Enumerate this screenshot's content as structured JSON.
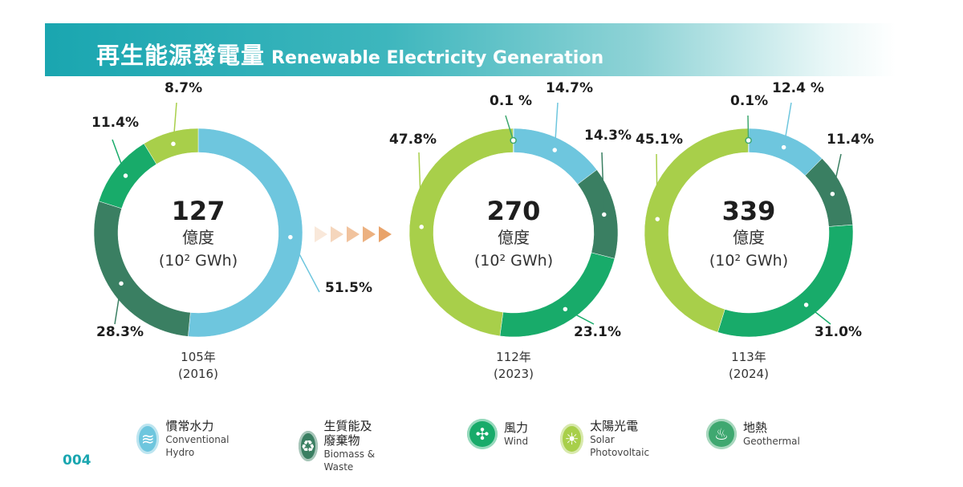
{
  "header": {
    "title_zh": "再生能源發電量",
    "title_en": "Renewable Electricity Generation"
  },
  "page_number": "004",
  "legend": [
    {
      "zh": "慣常水力",
      "en": "Conventional Hydro",
      "color": "#6ec6de",
      "icon": "hydro-icon"
    },
    {
      "zh": "生質能及廢棄物",
      "en": "Biomass & Waste",
      "color": "#3a7f62",
      "icon": "biomass-icon"
    },
    {
      "zh": "風力",
      "en": "Wind",
      "color": "#18ab6a",
      "icon": "wind-turbine-icon"
    },
    {
      "zh": "太陽光電",
      "en": "Solar Photovoltaic",
      "color": "#a8cf4a",
      "icon": "sun-icon"
    },
    {
      "zh": "地熱",
      "en": "Geothermal",
      "color": "#3fa870",
      "icon": "geothermal-icon"
    }
  ],
  "chart_data": [
    {
      "type": "pie",
      "year_label": "105年",
      "year_sub": "(2016)",
      "total": "127",
      "unit_zh": "億度",
      "unit_en": "(10² GWh)",
      "slices": [
        {
          "name": "慣常水力",
          "value": 51.5,
          "label": "51.5%",
          "color": "#6ec6de"
        },
        {
          "name": "生質能及廢棄物",
          "value": 28.3,
          "label": "28.3%",
          "color": "#3a7f62"
        },
        {
          "name": "風力",
          "value": 11.4,
          "label": "11.4%",
          "color": "#18ab6a"
        },
        {
          "name": "太陽光電",
          "value": 8.7,
          "label": "8.7%",
          "color": "#a8cf4a"
        }
      ]
    },
    {
      "type": "pie",
      "year_label": "112年",
      "year_sub": "(2023)",
      "total": "270",
      "unit_zh": "億度",
      "unit_en": "(10² GWh)",
      "slices": [
        {
          "name": "慣常水力",
          "value": 14.7,
          "label": "14.7%",
          "color": "#6ec6de"
        },
        {
          "name": "生質能及廢棄物",
          "value": 14.3,
          "label": "14.3%",
          "color": "#3a7f62"
        },
        {
          "name": "風力",
          "value": 23.1,
          "label": "23.1%",
          "color": "#18ab6a"
        },
        {
          "name": "太陽光電",
          "value": 47.8,
          "label": "47.8%",
          "color": "#a8cf4a"
        },
        {
          "name": "地熱",
          "value": 0.1,
          "label": "0.1 %",
          "color": "#3fa870"
        }
      ]
    },
    {
      "type": "pie",
      "year_label": "113年",
      "year_sub": "(2024)",
      "total": "339",
      "unit_zh": "億度",
      "unit_en": "(10² GWh)",
      "slices": [
        {
          "name": "慣常水力",
          "value": 12.4,
          "label": "12.4 %",
          "color": "#6ec6de"
        },
        {
          "name": "生質能及廢棄物",
          "value": 11.4,
          "label": "11.4%",
          "color": "#3a7f62"
        },
        {
          "name": "風力",
          "value": 31.0,
          "label": "31.0%",
          "color": "#18ab6a"
        },
        {
          "name": "太陽光電",
          "value": 45.1,
          "label": "45.1%",
          "color": "#a8cf4a"
        },
        {
          "name": "地熱",
          "value": 0.1,
          "label": "0.1%",
          "color": "#3fa870"
        }
      ]
    }
  ]
}
